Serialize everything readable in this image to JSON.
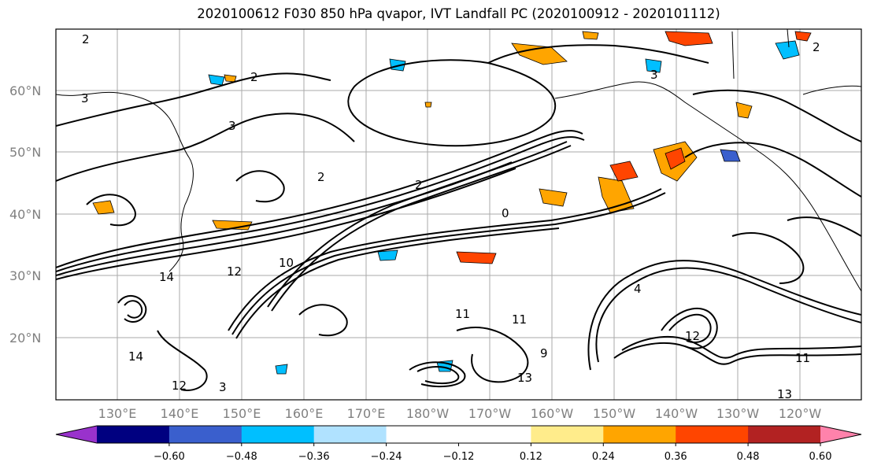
{
  "title": "2020100612 F030 850 hPa qvapor, IVT Landfall PC (2020100912 - 2020101112)",
  "lat_labels": [
    "60°N",
    "50°N",
    "40°N",
    "30°N",
    "20°N"
  ],
  "lon_labels": [
    "130°E",
    "140°E",
    "150°E",
    "160°E",
    "170°E",
    "180°W",
    "170°W",
    "160°W",
    "150°W",
    "140°W",
    "130°W",
    "120°W"
  ],
  "colorbar": {
    "colors": [
      "#9932cc",
      "#000080",
      "#3a5fcd",
      "#00bfff",
      "#b0e2ff",
      "#ffffff",
      "#ffffff",
      "#ffec8b",
      "#ffa500",
      "#ff4500",
      "#b22222",
      "#ff82ab"
    ],
    "tick_labels": [
      "-0.60",
      "-0.48",
      "-0.36",
      "-0.24",
      "-0.12",
      "0.12",
      "0.24",
      "0.36",
      "0.48",
      "0.60"
    ]
  },
  "contour_labels": [
    "2",
    "3",
    "2",
    "2",
    "3",
    "2",
    "14",
    "12",
    "11",
    "9",
    "0",
    "10",
    "4",
    "11",
    "13",
    "14",
    "12",
    "3",
    "13",
    "11",
    "2",
    "3",
    "12"
  ]
}
